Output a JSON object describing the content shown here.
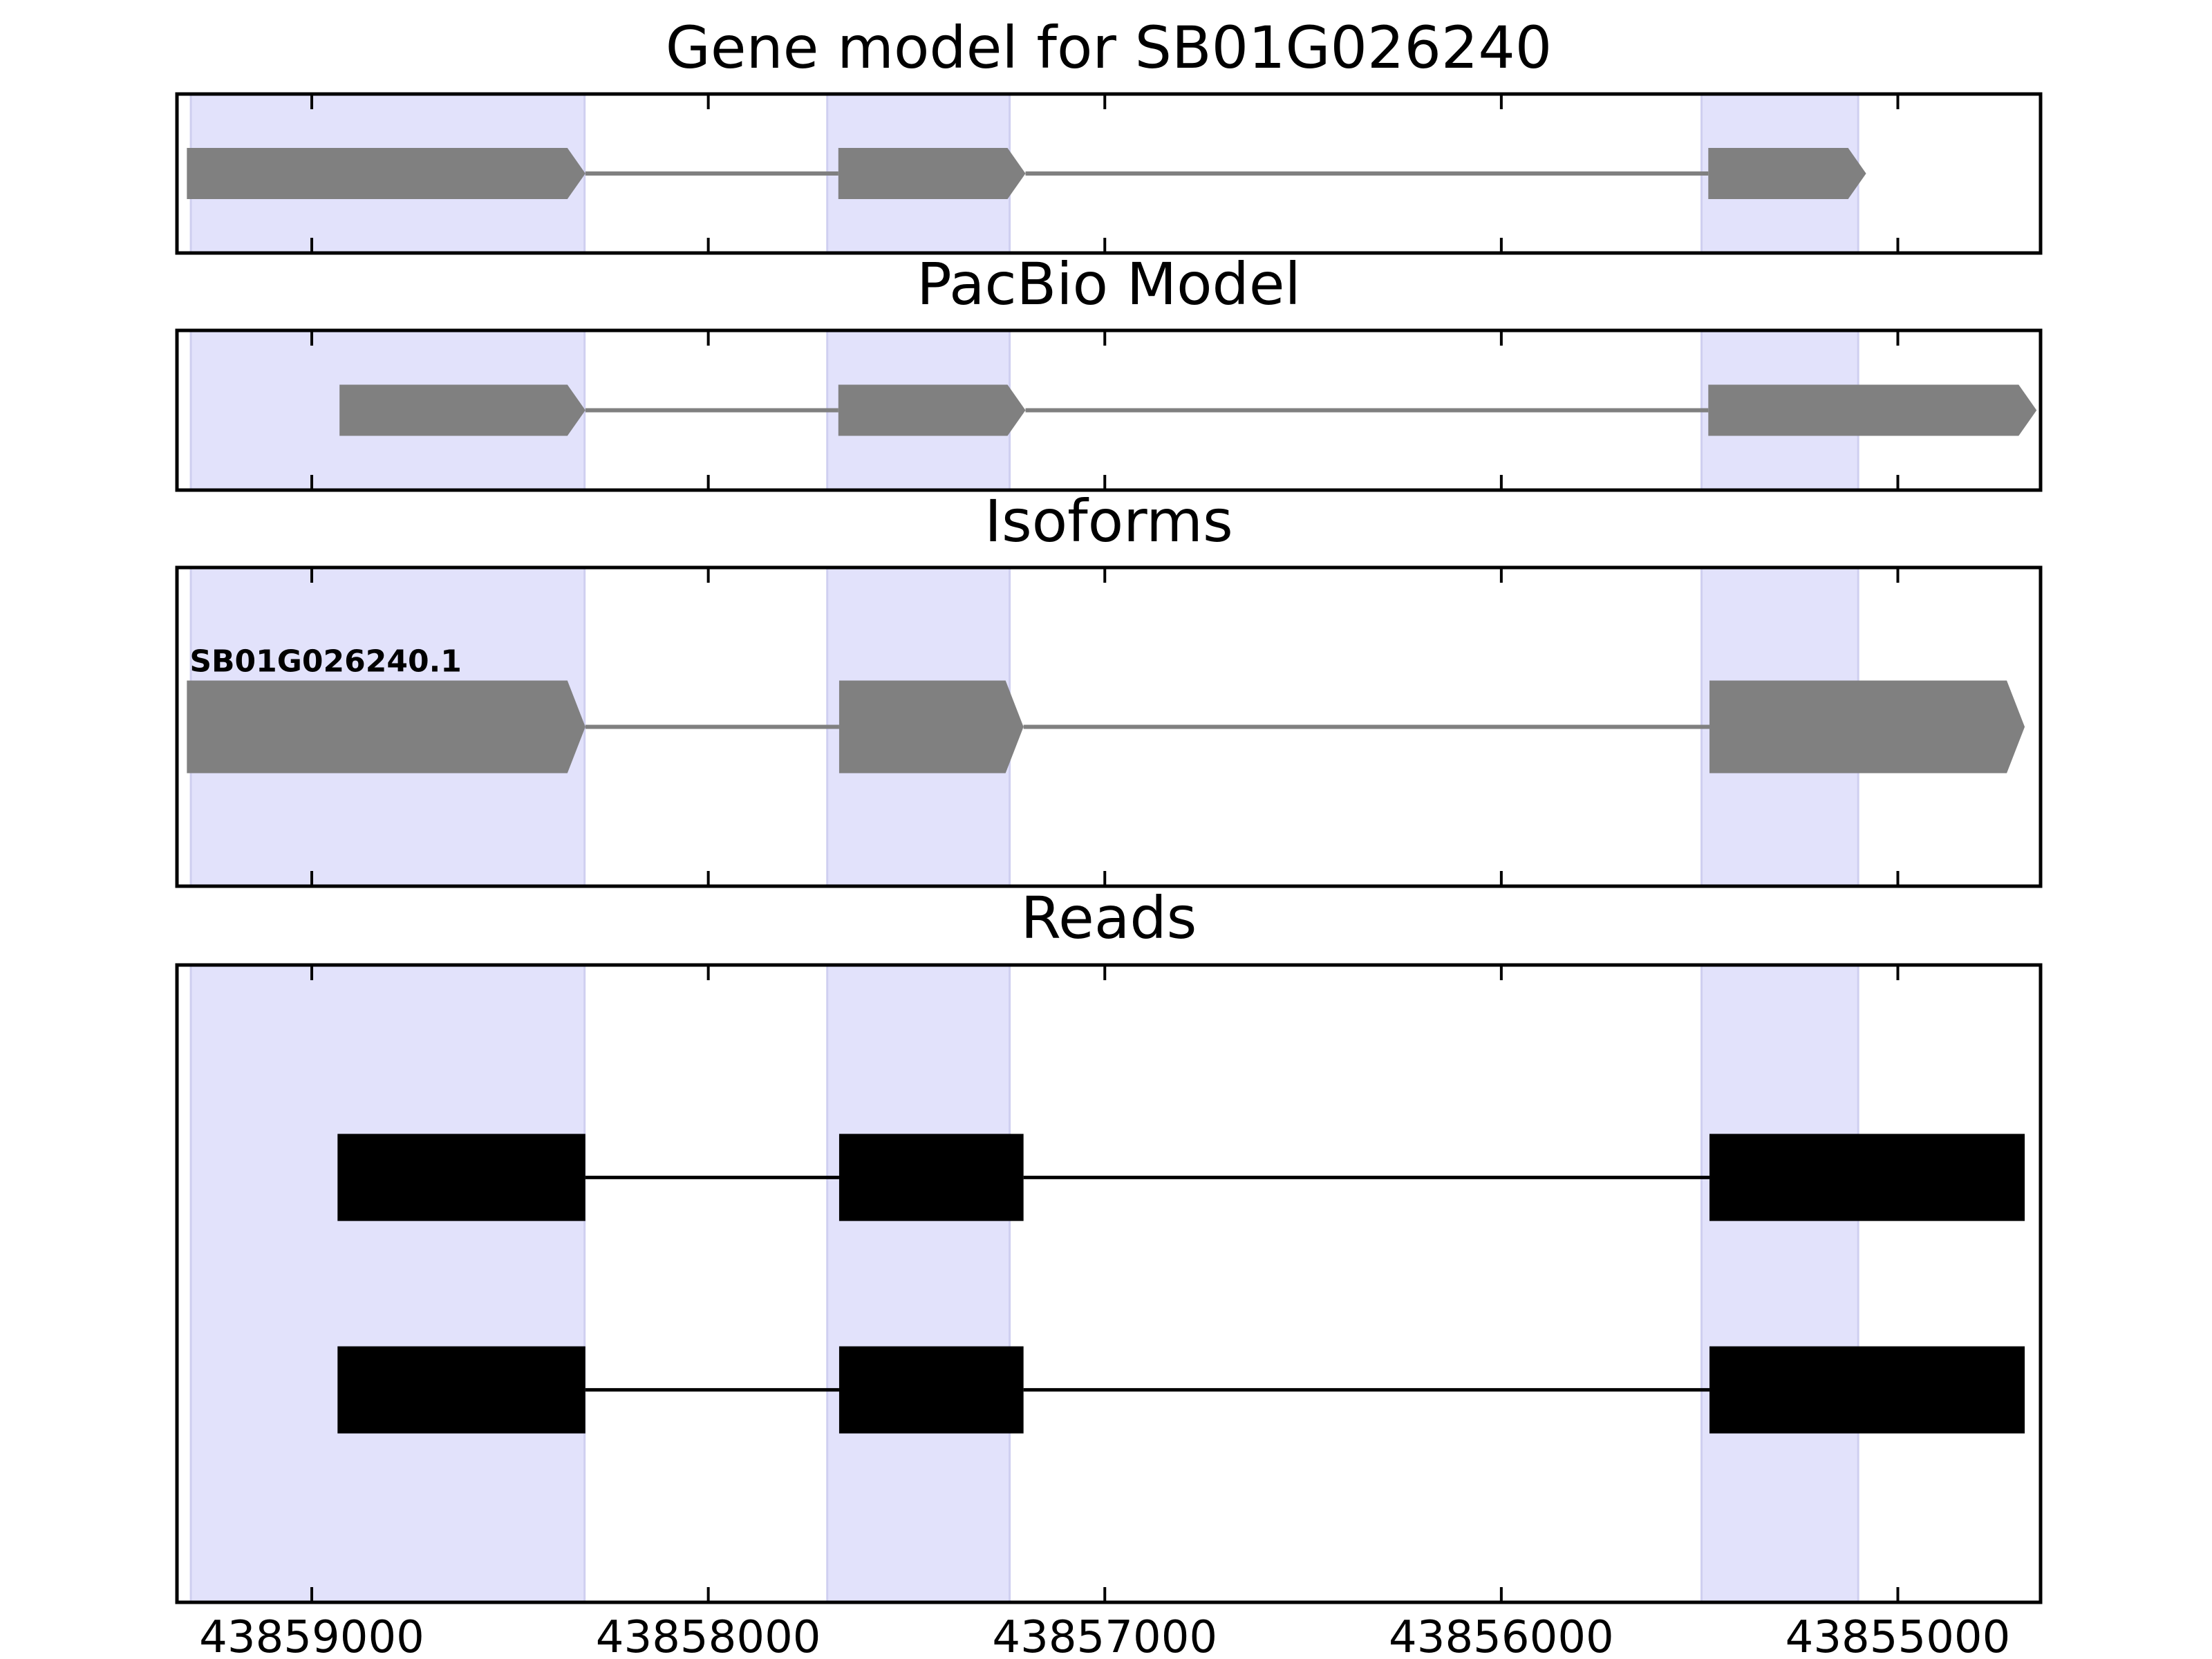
{
  "panels": [
    {
      "id": "gene-model",
      "title": "Gene model for SB01G026240",
      "track_type": "arrow",
      "features": [
        {
          "exons": [
            [
              43858310,
              43859315
            ],
            [
              43857200,
              43857672
            ],
            [
              43855080,
              43855478
            ]
          ]
        }
      ]
    },
    {
      "id": "pacbio-model",
      "title": "PacBio Model",
      "track_type": "arrow",
      "features": [
        {
          "exons": [
            [
              43858310,
              43858930
            ],
            [
              43857200,
              43857672
            ],
            [
              43854650,
              43855478
            ]
          ]
        }
      ]
    },
    {
      "id": "isoforms",
      "title": "Isoforms",
      "track_type": "arrow",
      "features": [
        {
          "label": "SB01G026240.1",
          "exons": [
            [
              43858310,
              43859315
            ],
            [
              43857205,
              43857670
            ],
            [
              43854680,
              43855475
            ]
          ]
        }
      ]
    },
    {
      "id": "reads",
      "title": "Reads",
      "track_type": "block",
      "features": [
        {
          "exons": [
            [
              43858310,
              43858935
            ],
            [
              43857205,
              43857670
            ],
            [
              43854680,
              43855475
            ]
          ]
        },
        {
          "exons": [
            [
              43858310,
              43858935
            ],
            [
              43857205,
              43857670
            ],
            [
              43854680,
              43855475
            ]
          ]
        }
      ]
    }
  ],
  "highlight_regions": [
    [
      43858312,
      43859305
    ],
    [
      43857240,
      43857700
    ],
    [
      43855100,
      43855495
    ]
  ],
  "x_axis": {
    "reversed": true,
    "range": [
      43859340,
      43854640
    ],
    "ticks": [
      43859000,
      43858000,
      43857000,
      43856000,
      43855000
    ],
    "tick_labels": [
      "43859000",
      "43858000",
      "43857000",
      "43856000",
      "43855000"
    ]
  },
  "colors": {
    "highlight": "#e2e2fb",
    "highlight_edge": "#cfcff0",
    "feature": "#808080",
    "intron": "#808080",
    "read": "#000000",
    "frame": "#000000"
  }
}
